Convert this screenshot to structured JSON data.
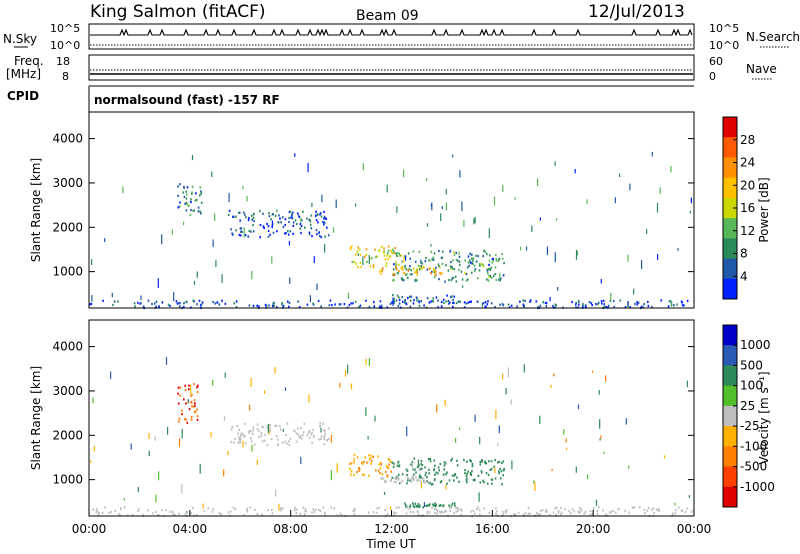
{
  "header": {
    "station": "King Salmon (fitACF)",
    "beam": "Beam 09",
    "date": "12/Jul/2013"
  },
  "params": {
    "nsky_label": "N.Sky",
    "nsearch_label": "N.Search",
    "freq_label": "Freq.",
    "freq_unit": "[MHz]",
    "nave_label": "Nave",
    "cpid_label": "CPID",
    "cpid_text": "normalsound (fast) -157 RF",
    "noise_ticks_left": [
      "10^5",
      "10^0"
    ],
    "noise_ticks_right": [
      "10^5",
      "10^0"
    ],
    "freq_ticks": [
      "18",
      "8"
    ],
    "nave_ticks": [
      "60",
      "0"
    ]
  },
  "chart_data": [
    {
      "type": "heatmap",
      "title": "",
      "xlabel": "",
      "ylabel": "Slant Range [km]",
      "ylim": [
        180,
        4600
      ],
      "yticks": [
        "4000",
        "3000",
        "2000",
        "1000"
      ],
      "xticks": [],
      "colorbar": {
        "label": "Power [dB]",
        "ticks": [
          "28",
          "24",
          "20",
          "16",
          "12",
          "8",
          "4"
        ],
        "colors": [
          "#e00000",
          "#ff5a00",
          "#ff9000",
          "#ffc000",
          "#c8d800",
          "#58b858",
          "#2a8a5a",
          "#1e5aa8",
          "#0020ff"
        ]
      },
      "regions": [
        {
          "x0": 3.5,
          "x1": 4.5,
          "y0": 2300,
          "y1": 3000,
          "value": 8
        },
        {
          "x0": 5.5,
          "x1": 9.5,
          "y0": 1800,
          "y1": 2400,
          "value": 6
        },
        {
          "x0": 10.3,
          "x1": 12.5,
          "y0": 1100,
          "y1": 1600,
          "value": 18
        },
        {
          "x0": 12.0,
          "x1": 16.5,
          "y0": 800,
          "y1": 1500,
          "value": 10
        },
        {
          "x0": 11.5,
          "x1": 14.0,
          "y0": 950,
          "y1": 1150,
          "value": 20
        },
        {
          "x0": 12.0,
          "x1": 14.5,
          "y0": 300,
          "y1": 500,
          "value": 6
        },
        {
          "x0": 0.0,
          "x1": 24.0,
          "y0": 200,
          "y1": 380,
          "value": 5
        }
      ]
    },
    {
      "type": "heatmap",
      "title": "",
      "xlabel": "Time UT",
      "ylabel": "Slant Range [km]",
      "ylim": [
        180,
        4600
      ],
      "yticks": [
        "4000",
        "3000",
        "2000",
        "1000"
      ],
      "xticks": [
        "00:00",
        "04:00",
        "08:00",
        "12:00",
        "16:00",
        "20:00",
        "00:00"
      ],
      "colorbar": {
        "label": "Velocity [m s⁻¹]",
        "ticks": [
          "1000",
          "500",
          "100",
          "25",
          "-25",
          "-100",
          "-500",
          "-1000"
        ],
        "colors": [
          "#0000cc",
          "#2a5ab4",
          "#2e8a58",
          "#52c02c",
          "#bebebe",
          "#ffb000",
          "#ff8000",
          "#ff4000",
          "#e00000"
        ]
      },
      "regions": [
        {
          "x0": 3.5,
          "x1": 4.3,
          "y0": 2300,
          "y1": 3200,
          "value": -700
        },
        {
          "x0": 5.5,
          "x1": 9.5,
          "y0": 1800,
          "y1": 2300,
          "value": 0
        },
        {
          "x0": 10.3,
          "x1": 12.0,
          "y0": 1100,
          "y1": 1600,
          "value": -300
        },
        {
          "x0": 12.0,
          "x1": 16.5,
          "y0": 900,
          "y1": 1500,
          "value": 150
        },
        {
          "x0": 11.5,
          "x1": 13.5,
          "y0": 950,
          "y1": 1100,
          "value": 0
        },
        {
          "x0": 12.5,
          "x1": 14.5,
          "y0": 400,
          "y1": 500,
          "value": 150
        },
        {
          "x0": 0.0,
          "x1": 24.0,
          "y0": 200,
          "y1": 400,
          "value": 0
        }
      ]
    }
  ]
}
